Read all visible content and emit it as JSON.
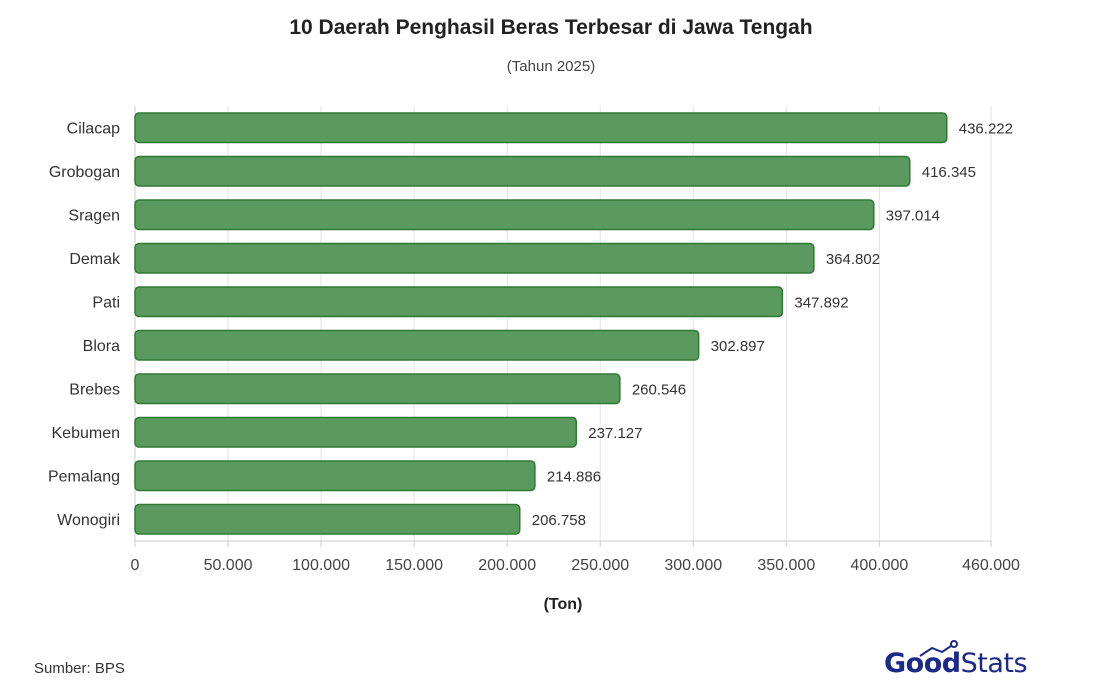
{
  "chart_data": {
    "type": "bar",
    "orientation": "horizontal",
    "title": "10 Daerah Penghasil Beras Terbesar di Jawa Tengah",
    "subtitle": "(Tahun 2025)",
    "xlabel": "(Ton)",
    "categories": [
      "Cilacap",
      "Grobogan",
      "Sragen",
      "Demak",
      "Pati",
      "Blora",
      "Brebes",
      "Kebumen",
      "Pemalang",
      "Wonogiri"
    ],
    "values": [
      436222,
      416345,
      397014,
      364802,
      347892,
      302897,
      260546,
      237127,
      214886,
      206758
    ],
    "value_labels": [
      "436.222",
      "416.345",
      "397.014",
      "364.802",
      "347.892",
      "302.897",
      "260.546",
      "237.127",
      "214.886",
      "206.758"
    ],
    "xlim": [
      0,
      460000
    ],
    "ticks": [
      0,
      50000,
      100000,
      150000,
      200000,
      250000,
      300000,
      350000,
      400000,
      460000
    ],
    "tick_labels": [
      "0",
      "50.000",
      "100.000",
      "150.000",
      "200.000",
      "250.000",
      "300.000",
      "350.000",
      "400.000",
      "460.000"
    ],
    "grid": true,
    "bar_color": "#5a9a5e",
    "bar_edge_color": "#2f7a33"
  },
  "footer": {
    "source": "Sumber: BPS",
    "logo_good": "Good",
    "logo_stats": "Stats"
  }
}
